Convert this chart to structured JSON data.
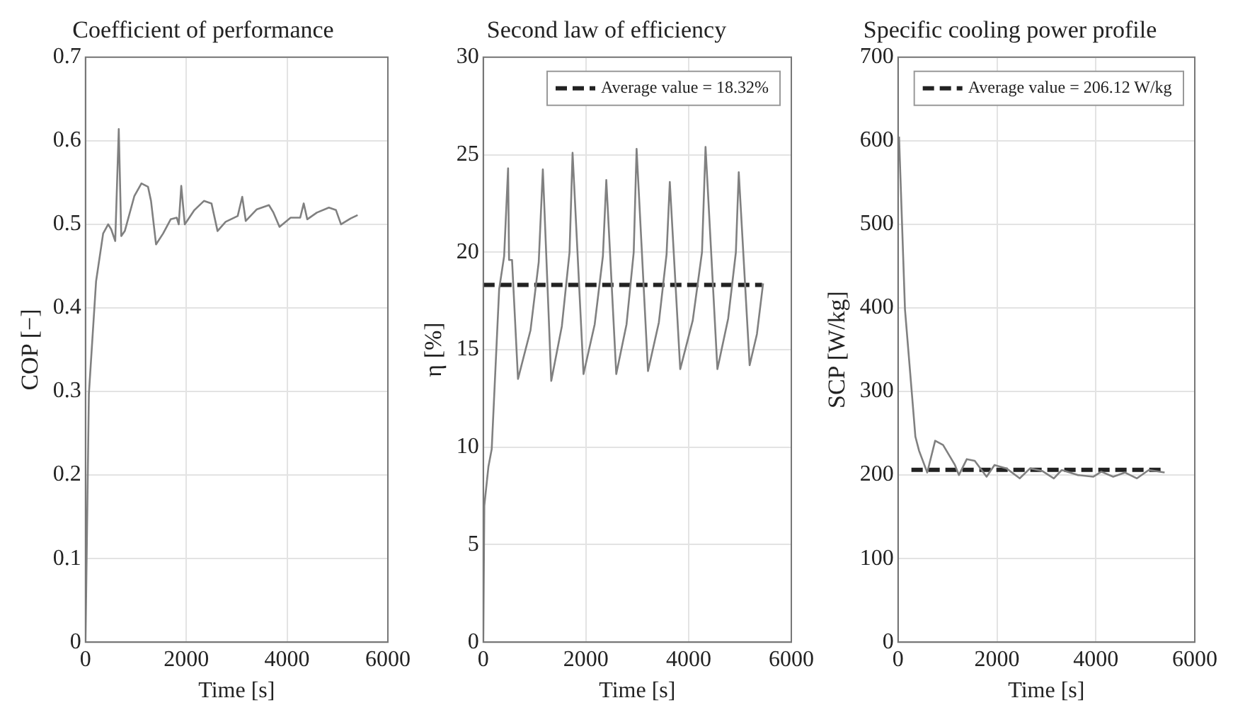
{
  "chart_data": [
    {
      "type": "line",
      "title": "Coefficient of performance",
      "xlabel": "Time [s]",
      "ylabel": "COP [−]",
      "xlim": [
        0,
        6000
      ],
      "xticks": [
        0,
        2000,
        4000,
        6000
      ],
      "ylim": [
        0,
        0.7
      ],
      "yticks": [
        0,
        0.1,
        0.2,
        0.3,
        0.4,
        0.5,
        0.6,
        0.7
      ],
      "grid": true,
      "legend": false,
      "series": [
        {
          "color": "#808080",
          "x": [
            0,
            67,
            210,
            350,
            450,
            510,
            590,
            660,
            710,
            780,
            970,
            1110,
            1240,
            1300,
            1400,
            1540,
            1690,
            1810,
            1850,
            1900,
            1970,
            2160,
            2350,
            2500,
            2620,
            2780,
            3020,
            3110,
            3180,
            3400,
            3640,
            3730,
            3850,
            4070,
            4260,
            4330,
            4400,
            4590,
            4830,
            4970,
            5070,
            5260,
            5400
          ],
          "values": [
            0,
            0.297,
            0.432,
            0.489,
            0.5,
            0.494,
            0.48,
            0.614,
            0.486,
            0.492,
            0.534,
            0.549,
            0.545,
            0.528,
            0.476,
            0.489,
            0.506,
            0.508,
            0.5,
            0.546,
            0.5,
            0.517,
            0.528,
            0.525,
            0.492,
            0.503,
            0.51,
            0.533,
            0.504,
            0.518,
            0.523,
            0.514,
            0.497,
            0.508,
            0.508,
            0.525,
            0.506,
            0.514,
            0.52,
            0.517,
            0.5,
            0.507,
            0.511
          ]
        }
      ]
    },
    {
      "type": "line",
      "title": "Second law of efficiency",
      "xlabel": "Time [s]",
      "ylabel": "η [%]",
      "xlim": [
        0,
        6000
      ],
      "xticks": [
        0,
        2000,
        4000,
        6000
      ],
      "ylim": [
        0,
        30
      ],
      "yticks": [
        0,
        5,
        10,
        15,
        20,
        25,
        30
      ],
      "grid": true,
      "legend": "top right",
      "series": [
        {
          "color": "#808080",
          "x": [
            0,
            20,
            100,
            164,
            309,
            406,
            483,
            502,
            560,
            676,
            920,
            1080,
            1160,
            1324,
            1530,
            1680,
            1739,
            1952,
            2170,
            2330,
            2396,
            2590,
            2790,
            2930,
            2986,
            3208,
            3420,
            3570,
            3633,
            3836,
            4080,
            4260,
            4329,
            4560,
            4770,
            4920,
            4976,
            5188,
            5330,
            5450
          ],
          "values": [
            0,
            7,
            9,
            9.9,
            18.1,
            19.8,
            24.3,
            19.6,
            19.6,
            13.5,
            16,
            19.5,
            24.25,
            13.4,
            16.2,
            20,
            25.1,
            13.75,
            16.3,
            19.8,
            23.7,
            13.75,
            16.3,
            20,
            25.3,
            13.9,
            16.4,
            19.9,
            23.6,
            14,
            16.5,
            20,
            25.4,
            14,
            16.6,
            20,
            24.1,
            14.2,
            15.8,
            18.4
          ]
        },
        {
          "name": "Average value = 18.32%",
          "color": "#222222",
          "line_style": "dashed",
          "x": [
            0,
            5430
          ],
          "values": [
            18.32,
            18.32
          ]
        }
      ]
    },
    {
      "type": "line",
      "title": "Specific cooling power profile",
      "xlabel": "Time [s]",
      "ylabel": "SCP [W/kg]",
      "xlim": [
        0,
        6000
      ],
      "xticks": [
        0,
        2000,
        4000,
        6000
      ],
      "ylim": [
        0,
        700
      ],
      "yticks": [
        0,
        100,
        200,
        300,
        400,
        500,
        600,
        700
      ],
      "grid": true,
      "legend": "top right",
      "series": [
        {
          "color": "#808080",
          "x": [
            20,
            140,
            280,
            350,
            425,
            590,
            750,
            910,
            1150,
            1230,
            1390,
            1550,
            1790,
            1950,
            2190,
            2460,
            2670,
            2910,
            3150,
            3310,
            3630,
            3950,
            4110,
            4350,
            4590,
            4830,
            5070,
            5390
          ],
          "values": [
            605,
            398,
            297,
            246,
            229,
            203,
            241,
            236,
            212,
            200,
            219,
            217,
            198,
            212,
            208,
            196,
            208,
            205,
            196,
            206,
            200,
            198,
            204,
            198,
            203,
            196,
            206,
            203
          ]
        },
        {
          "name": "Average value = 206.12 W/kg",
          "color": "#222222",
          "line_style": "dashed",
          "x": [
            270,
            5400
          ],
          "values": [
            206.12,
            206.12
          ]
        }
      ]
    }
  ]
}
